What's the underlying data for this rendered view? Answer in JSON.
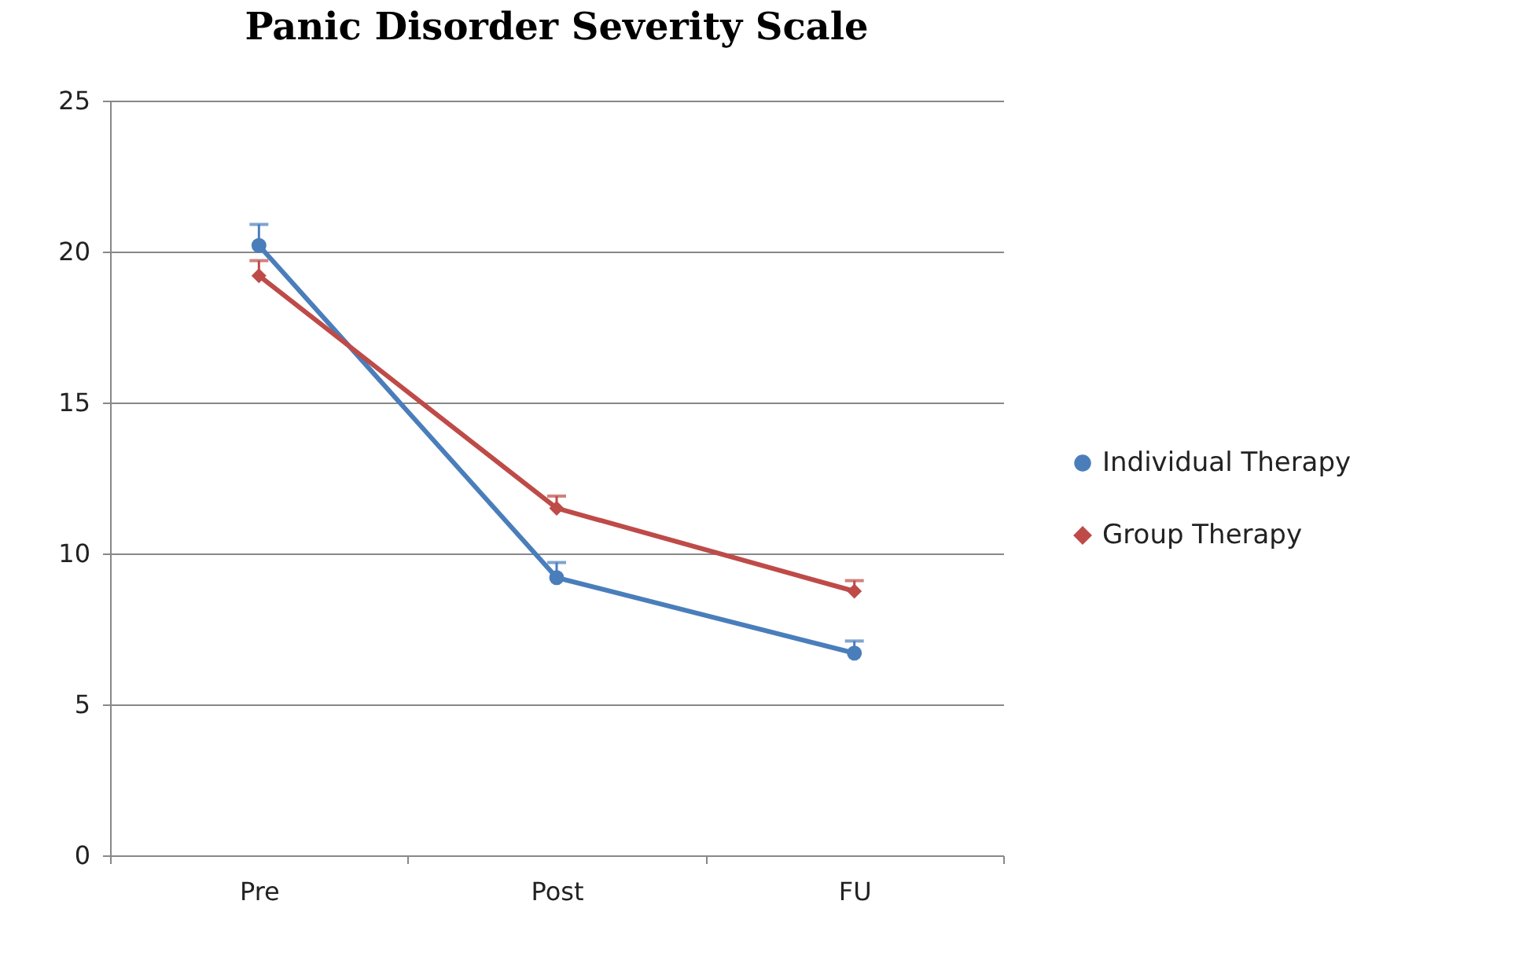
{
  "chart_data": {
    "type": "line",
    "title": "Panic Disorder Severity Scale",
    "categories": [
      "Pre",
      "Post",
      "FU"
    ],
    "series": [
      {
        "name": "Individual Therapy",
        "color": "#4a7ebb",
        "marker": "circle",
        "values": [
          20.2,
          9.2,
          6.7
        ],
        "errors": [
          [
            20.2,
            20.9
          ],
          [
            9.2,
            9.7
          ],
          [
            6.7,
            7.1
          ]
        ]
      },
      {
        "name": "Group Therapy",
        "color": "#be4b48",
        "marker": "diamond",
        "values": [
          19.2,
          11.5,
          8.75
        ],
        "errors": [
          [
            19.2,
            19.7
          ],
          [
            11.5,
            11.9
          ],
          [
            8.75,
            9.1
          ]
        ]
      }
    ],
    "ylim": [
      0,
      25
    ],
    "yticks": [
      0,
      5,
      10,
      15,
      20,
      25
    ],
    "grid": "y",
    "legend": "right",
    "line_style": "solid"
  }
}
